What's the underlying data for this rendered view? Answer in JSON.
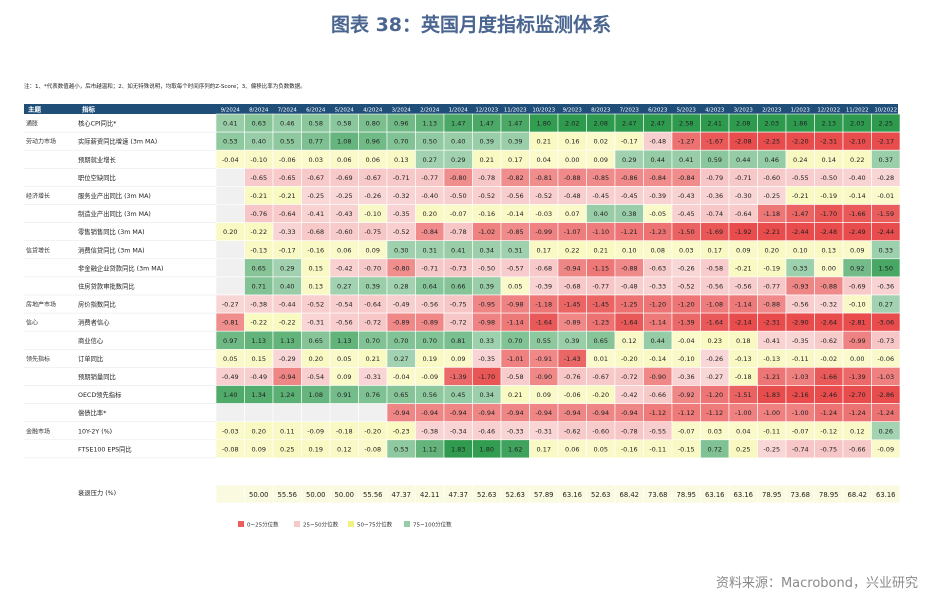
{
  "title": "图表 38：英国月度指标监测体系",
  "note": "注：1、*代表数值越小，后市越温和；2、如无特殊说明，均取每个时间序列的Z-Score；3、偏移比率为负数数据。",
  "source": "资料来源：Macrobond，兴业研究",
  "colors": {
    "header_bg": "#1f4e79",
    "red": "#e84c4c",
    "pink": "#f2a3a3",
    "yellow": "#f0f070",
    "green": "#2e9a4e",
    "empty": "#f0f0f0"
  },
  "chart_data": {
    "type": "table",
    "columns": [
      "主题",
      "指标",
      "9/2024",
      "8/2024",
      "7/2024",
      "6/2024",
      "5/2024",
      "4/2024",
      "3/2024",
      "2/2024",
      "1/2024",
      "12/2023",
      "11/2023",
      "10/2023",
      "9/2023",
      "8/2023",
      "7/2023",
      "6/2023",
      "5/2023",
      "4/2023",
      "3/2023",
      "2/2023",
      "1/2023",
      "12/2022",
      "11/2022",
      "10/2022"
    ],
    "rows": [
      {
        "theme": "通胀",
        "name": "核心CPI同比*",
        "values": [
          "0.41",
          "0.63",
          "0.46",
          "0.58",
          "0.58",
          "0.80",
          "0.96",
          "1.13",
          "1.47",
          "1.47",
          "1.47",
          "1.80",
          "2.02",
          "2.08",
          "2.47",
          "2.47",
          "2.58",
          "2.41",
          "2.08",
          "2.03",
          "1.86",
          "2.13",
          "2.03",
          "2.25"
        ]
      },
      {
        "theme": "劳动力市场",
        "name": "实际薪资同比增速 (3m MA)",
        "values": [
          "0.53",
          "0.40",
          "0.55",
          "0.77",
          "1.08",
          "0.96",
          "0.70",
          "0.50",
          "0.40",
          "0.39",
          "0.39",
          "0.21",
          "0.16",
          "0.02",
          "-0.17",
          "-0.48",
          "-1.27",
          "-1.67",
          "-2.08",
          "-2.25",
          "-2.20",
          "-2.31",
          "-2.10",
          "-2.17"
        ]
      },
      {
        "theme": "",
        "name": "预期就业增长",
        "values": [
          "-0.04",
          "-0.10",
          "-0.06",
          "0.03",
          "0.06",
          "0.06",
          "0.13",
          "0.27",
          "0.29",
          "0.21",
          "0.17",
          "0.04",
          "0.00",
          "0.09",
          "0.29",
          "0.44",
          "0.41",
          "0.59",
          "0.44",
          "0.46",
          "0.24",
          "0.14",
          "0.22",
          "0.37"
        ]
      },
      {
        "theme": "",
        "name": "职位空缺同比",
        "values": [
          "",
          "-0.65",
          "-0.65",
          "-0.67",
          "-0.69",
          "-0.67",
          "-0.71",
          "-0.77",
          "-0.80",
          "-0.78",
          "-0.82",
          "-0.81",
          "-0.88",
          "-0.85",
          "-0.86",
          "-0.84",
          "-0.84",
          "-0.79",
          "-0.71",
          "-0.60",
          "-0.55",
          "-0.50",
          "-0.40",
          "-0.28"
        ]
      },
      {
        "theme": "经济增长",
        "name": "服务业产出同比 (3m MA)",
        "values": [
          "",
          "-0.21",
          "-0.21",
          "-0.25",
          "-0.25",
          "-0.26",
          "-0.32",
          "-0.40",
          "-0.50",
          "-0.52",
          "-0.56",
          "-0.52",
          "-0.48",
          "-0.45",
          "-0.45",
          "-0.39",
          "-0.43",
          "-0.36",
          "-0.30",
          "-0.25",
          "-0.21",
          "-0.19",
          "-0.14",
          "-0.01"
        ]
      },
      {
        "theme": "",
        "name": "制造业产出同比 (3m MA)",
        "values": [
          "",
          "-0.76",
          "-0.64",
          "-0.41",
          "-0.43",
          "-0.10",
          "-0.35",
          "0.20",
          "-0.07",
          "-0.16",
          "-0.14",
          "-0.03",
          "0.07",
          "0.40",
          "0.38",
          "-0.05",
          "-0.45",
          "-0.74",
          "-0.64",
          "-1.18",
          "-1.47",
          "-1.70",
          "-1.66",
          "-1.59"
        ]
      },
      {
        "theme": "",
        "name": "零售销售同比 (3m MA)",
        "values": [
          "0.20",
          "-0.22",
          "-0.33",
          "-0.68",
          "-0.60",
          "-0.75",
          "-0.52",
          "-0.84",
          "-0.78",
          "-1.02",
          "-0.85",
          "-0.99",
          "-1.07",
          "-1.10",
          "-1.21",
          "-1.23",
          "-1.50",
          "-1.69",
          "-1.92",
          "-2.21",
          "-2.44",
          "-2.48",
          "-2.49",
          "-2.44"
        ]
      },
      {
        "theme": "信贷增长",
        "name": "消费信贷同比 (3m MA)",
        "values": [
          "",
          "-0.13",
          "-0.17",
          "-0.16",
          "0.06",
          "0.09",
          "0.30",
          "0.31",
          "0.41",
          "0.34",
          "0.31",
          "0.17",
          "0.22",
          "0.21",
          "0.10",
          "0.08",
          "0.03",
          "0.17",
          "0.09",
          "0.20",
          "0.10",
          "0.13",
          "0.09",
          "0.33"
        ]
      },
      {
        "theme": "",
        "name": "非金融企业贷款同比 (3m MA)",
        "values": [
          "",
          "0.65",
          "0.29",
          "0.15",
          "-0.42",
          "-0.70",
          "-0.80",
          "-0.71",
          "-0.73",
          "-0.50",
          "-0.57",
          "-0.68",
          "-0.94",
          "-1.15",
          "-0.88",
          "-0.63",
          "-0.26",
          "-0.58",
          "-0.21",
          "-0.19",
          "0.33",
          "0.00",
          "0.92",
          "1.50"
        ]
      },
      {
        "theme": "",
        "name": "住房贷款审批数同比",
        "values": [
          "",
          "0.71",
          "0.40",
          "0.13",
          "0.27",
          "0.39",
          "0.28",
          "0.64",
          "0.66",
          "0.39",
          "0.05",
          "-0.39",
          "-0.68",
          "-0.77",
          "-0.48",
          "-0.33",
          "-0.52",
          "-0.56",
          "-0.56",
          "-0.77",
          "-0.93",
          "-0.88",
          "-0.69",
          "-0.36"
        ]
      },
      {
        "theme": "房地产市场",
        "name": "房价指数同比",
        "values": [
          "-0.27",
          "-0.38",
          "-0.44",
          "-0.52",
          "-0.54",
          "-0.64",
          "-0.49",
          "-0.56",
          "-0.75",
          "-0.95",
          "-0.98",
          "-1.18",
          "-1.45",
          "-1.45",
          "-1.25",
          "-1.20",
          "-1.20",
          "-1.08",
          "-1.14",
          "-0.88",
          "-0.56",
          "-0.32",
          "-0.10",
          "0.27"
        ]
      },
      {
        "theme": "信心",
        "name": "消费者信心",
        "values": [
          "-0.81",
          "-0.22",
          "-0.22",
          "-0.31",
          "-0.56",
          "-0.72",
          "-0.89",
          "-0.89",
          "-0.72",
          "-0.98",
          "-1.14",
          "-1.64",
          "-0.89",
          "-1.23",
          "-1.64",
          "-1.14",
          "-1.39",
          "-1.64",
          "-2.14",
          "-2.31",
          "-2.90",
          "-2.64",
          "-2.81",
          "-3.06"
        ]
      },
      {
        "theme": "",
        "name": "商业信心",
        "values": [
          "0.97",
          "1.13",
          "1.13",
          "0.65",
          "1.13",
          "0.70",
          "0.70",
          "0.70",
          "0.81",
          "0.33",
          "0.70",
          "0.55",
          "0.39",
          "0.65",
          "0.12",
          "0.44",
          "-0.04",
          "0.23",
          "0.18",
          "-0.41",
          "-0.35",
          "-0.62",
          "-0.99",
          "-0.73"
        ]
      },
      {
        "theme": "领先指标",
        "name": "订单同比",
        "values": [
          "0.05",
          "0.15",
          "-0.29",
          "0.20",
          "0.05",
          "0.21",
          "0.27",
          "0.19",
          "0.09",
          "-0.35",
          "-1.01",
          "-0.91",
          "-1.43",
          "0.01",
          "-0.20",
          "-0.14",
          "-0.10",
          "-0.26",
          "-0.13",
          "-0.13",
          "-0.11",
          "-0.02",
          "0.00",
          "-0.06"
        ]
      },
      {
        "theme": "",
        "name": "预期销量同比",
        "values": [
          "-0.49",
          "-0.49",
          "-0.94",
          "-0.54",
          "0.09",
          "-0.31",
          "-0.04",
          "-0.09",
          "-1.39",
          "-1.70",
          "-0.58",
          "-0.90",
          "-0.76",
          "-0.67",
          "-0.72",
          "-0.90",
          "-0.36",
          "-0.27",
          "-0.18",
          "-1.21",
          "-1.03",
          "-1.66",
          "-1.39",
          "-1.03"
        ]
      },
      {
        "theme": "",
        "name": "OECD领先指标",
        "values": [
          "1.40",
          "1.34",
          "1.24",
          "1.08",
          "0.91",
          "0.76",
          "0.65",
          "0.56",
          "0.45",
          "0.34",
          "0.21",
          "0.09",
          "-0.06",
          "-0.20",
          "-0.42",
          "-0.66",
          "-0.92",
          "-1.20",
          "-1.51",
          "-1.83",
          "-2.16",
          "-2.46",
          "-2.70",
          "-2.86"
        ]
      },
      {
        "theme": "",
        "name": "偿债比率*",
        "values": [
          "",
          "",
          "",
          "",
          "",
          "",
          "-0.94",
          "-0.94",
          "-0.94",
          "-0.94",
          "-0.94",
          "-0.94",
          "-0.94",
          "-0.94",
          "-0.94",
          "-1.12",
          "-1.12",
          "-1.12",
          "-1.00",
          "-1.00",
          "-1.00",
          "-1.24",
          "-1.24",
          "-1.24"
        ]
      },
      {
        "theme": "金融市场",
        "name": "10Y-2Y (%)",
        "values": [
          "-0.03",
          "0.20",
          "0.11",
          "-0.09",
          "-0.18",
          "-0.20",
          "-0.23",
          "-0.38",
          "-0.34",
          "-0.46",
          "-0.33",
          "-0.31",
          "-0.62",
          "-0.60",
          "-0.78",
          "-0.55",
          "-0.07",
          "0.03",
          "0.04",
          "-0.11",
          "-0.07",
          "-0.12",
          "0.12",
          "0.26"
        ]
      },
      {
        "theme": "",
        "name": "FTSE100 EPS同比",
        "values": [
          "-0.08",
          "0.09",
          "0.25",
          "0.19",
          "0.12",
          "-0.08",
          "0.53",
          "1.12",
          "1.83",
          "1.80",
          "1.62",
          "0.17",
          "0.06",
          "0.05",
          "-0.16",
          "-0.11",
          "-0.15",
          "0.72",
          "0.25",
          "-0.25",
          "-0.74",
          "-0.75",
          "-0.66",
          "-0.09"
        ]
      }
    ],
    "pressure": {
      "label": "衰退压力 (%)",
      "values": [
        "",
        "50.00",
        "55.56",
        "50.00",
        "50.00",
        "55.56",
        "47.37",
        "42.11",
        "47.37",
        "52.63",
        "52.63",
        "57.89",
        "63.16",
        "52.63",
        "68.42",
        "73.68",
        "78.95",
        "63.16",
        "63.16",
        "78.95",
        "73.68",
        "78.95",
        "68.42",
        "63.16"
      ]
    },
    "legend": [
      "0~25分位数",
      "25~50分位数",
      "50~75分位数",
      "75~100分位数"
    ]
  }
}
